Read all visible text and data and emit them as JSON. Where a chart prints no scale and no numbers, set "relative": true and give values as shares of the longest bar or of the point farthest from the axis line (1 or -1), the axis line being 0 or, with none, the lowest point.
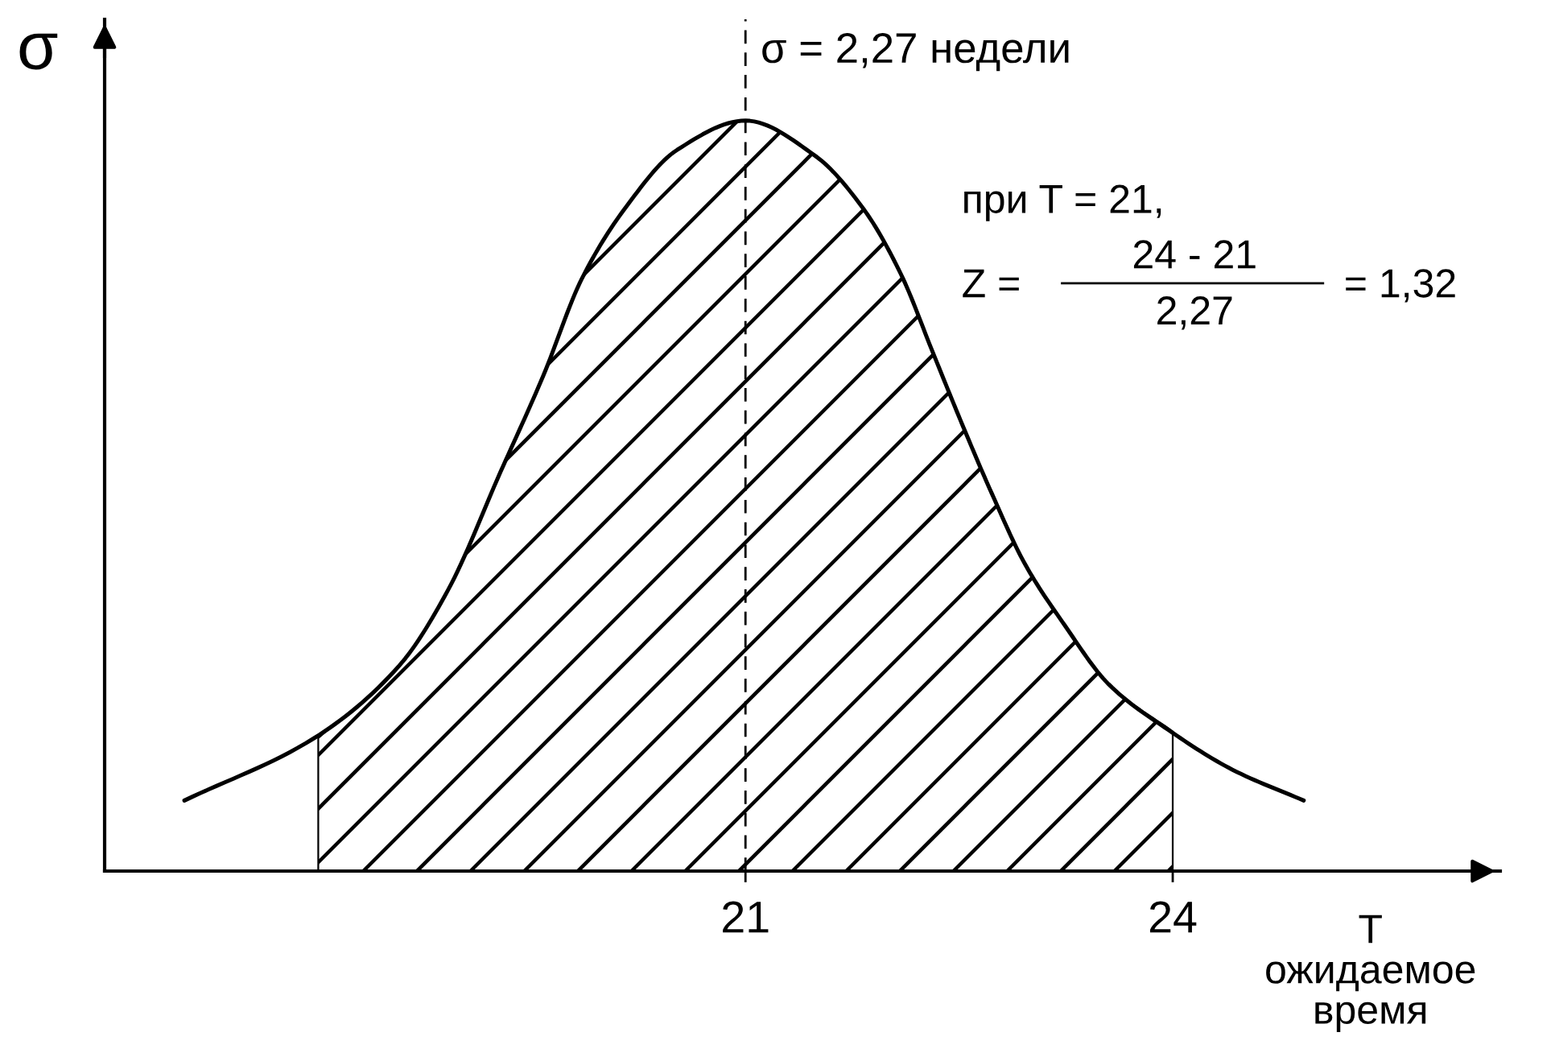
{
  "chart_data": {
    "type": "line",
    "relative": true,
    "xlabel": "T\nожидаемое\nвремя",
    "ylabel": "σ",
    "xlim": [
      16.5,
      26.3
    ],
    "xticks": [
      21,
      24
    ],
    "series": [
      {
        "color": "#000000",
        "x": [
          17.06,
          17.97,
          18.57,
          18.91,
          19.28,
          19.58,
          19.85,
          20.15,
          20.52,
          21,
          21.49,
          21.83,
          22.09,
          22.32,
          22.52,
          22.73,
          22.96,
          23.24,
          23.55,
          23.97,
          24.42,
          24.92
        ],
        "values": [
          0.094,
          0.177,
          0.274,
          0.374,
          0.532,
          0.66,
          0.789,
          0.882,
          0.961,
          1,
          0.953,
          0.882,
          0.796,
          0.689,
          0.596,
          0.503,
          0.41,
          0.328,
          0.249,
          0.188,
          0.135,
          0.094
        ]
      },
      {
        "type": "area",
        "color": "#000000",
        "x": [
          18,
          18.57,
          18.91,
          19.28,
          19.58,
          19.85,
          20.15,
          20.52,
          21,
          21.49,
          21.83,
          22.09,
          22.32,
          22.52,
          22.73,
          22.96,
          23.24,
          23.55,
          24
        ],
        "values": [
          0.177,
          0.274,
          0.374,
          0.532,
          0.66,
          0.789,
          0.882,
          0.961,
          1,
          0.953,
          0.882,
          0.796,
          0.689,
          0.596,
          0.503,
          0.41,
          0.328,
          0.249,
          0.186
        ]
      }
    ],
    "ref_lines": [
      {
        "axis": "x",
        "value": 21,
        "line_style": "dashed",
        "color": "#000000"
      }
    ],
    "annotations": [
      "σ = 2,27 недели",
      "при T = 21,",
      "Z =",
      "24 - 21",
      "2,27",
      "= 1,32"
    ]
  }
}
